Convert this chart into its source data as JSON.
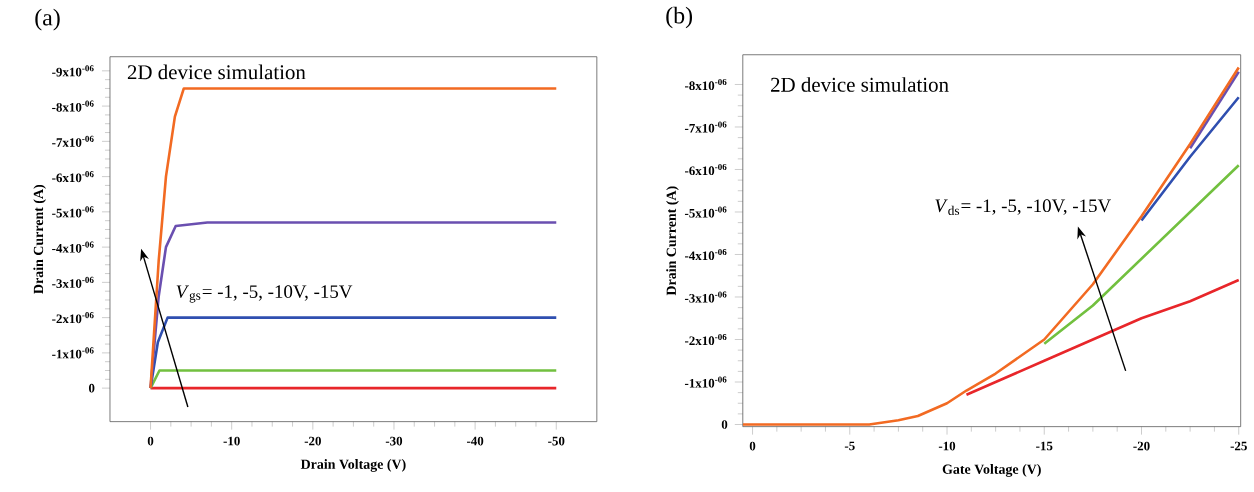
{
  "chart_data": [
    {
      "type": "line",
      "title": "(a)",
      "xlabel": "Drain Voltage (V)",
      "ylabel": "Drain Current (A)",
      "xlim": [
        5,
        -55
      ],
      "xticks": [
        0,
        -10,
        -20,
        -30,
        -40,
        -50
      ],
      "ylim": [
        9.5e-07,
        -9.4e-06
      ],
      "yticks": [
        0,
        {
          "value": -1e-06,
          "label": "-1x10$^{-06}$"
        },
        {
          "value": -2e-06,
          "label": "-2x10$^{-06}$"
        },
        {
          "value": -3e-06,
          "label": "-3x10$^{-06}$"
        },
        {
          "value": -4e-06,
          "label": "-4x10$^{-06}$"
        },
        {
          "value": -5e-06,
          "label": "-5x10$^{-06}$"
        },
        {
          "value": -6e-06,
          "label": "-6x10$^{-06}$"
        },
        {
          "value": -7e-06,
          "label": "-7x10$^{-06}$"
        },
        {
          "value": -8e-06,
          "label": "-8x10$^{-06}$"
        },
        {
          "value": -9e-06,
          "label": "-9x10$^{-06}$"
        }
      ],
      "annotations": [
        "2D device simulation",
        "*V*$_{gs}$= -1, -5, -10V, -15V"
      ],
      "series": [
        {
          "color": "#e8262a",
          "x": [
            0,
            -50
          ],
          "values": [
            0,
            0
          ]
        },
        {
          "color": "#72c03f",
          "x": [
            0,
            -1.1,
            -50
          ],
          "values": [
            0,
            -5e-07,
            -5e-07
          ]
        },
        {
          "color": "#2f4fb0",
          "x": [
            0,
            -0.9,
            -2.1,
            -50
          ],
          "values": [
            0,
            -1.3e-06,
            -2e-06,
            -2e-06
          ]
        },
        {
          "color": "#6a4fb0",
          "x": [
            0,
            -1.0,
            -1.9,
            -3.1,
            -7,
            -50
          ],
          "values": [
            0,
            -2.6e-06,
            -4e-06,
            -4.6e-06,
            -4.7e-06,
            -4.7e-06
          ]
        },
        {
          "color": "#f26a22",
          "x": [
            0,
            -1.0,
            -1.9,
            -3.0,
            -4.1,
            -5.5,
            -50
          ],
          "values": [
            0,
            -3.6e-06,
            -6e-06,
            -7.7e-06,
            -8.5e-06,
            -8.5e-06,
            -8.5e-06
          ]
        }
      ]
    },
    {
      "type": "line",
      "title": "(b)",
      "xlabel": "Gate Voltage (V)",
      "ylabel": "Drain Current (A)",
      "xlim": [
        0.5,
        -25.1
      ],
      "xticks": [
        0,
        -5,
        -10,
        -15,
        -20,
        -25
      ],
      "ylim": [
        5e-08,
        -8.7e-06
      ],
      "yticks": [
        0,
        {
          "value": -1e-06,
          "label": "-1x10$^{-06}$"
        },
        {
          "value": -2e-06,
          "label": "-2x10$^{-06}$"
        },
        {
          "value": -3e-06,
          "label": "-3x10$^{-06}$"
        },
        {
          "value": -4e-06,
          "label": "-4x10$^{-06}$"
        },
        {
          "value": -5e-06,
          "label": "-5x10$^{-06}$"
        },
        {
          "value": -6e-06,
          "label": "-6x10$^{-06}$"
        },
        {
          "value": -7e-06,
          "label": "-7x10$^{-06}$"
        },
        {
          "value": -8e-06,
          "label": "-8x10$^{-06}$"
        }
      ],
      "annotations": [
        "2D device simulation",
        "*V*$_{ds}$= -1, -5, -10V, -15V"
      ],
      "series": [
        {
          "color": "#e8262a",
          "x": [
            -11,
            -12.5,
            -15,
            -17.5,
            -20,
            -22.5,
            -25
          ],
          "values": [
            -7e-07,
            -1e-06,
            -1.5e-06,
            -2e-06,
            -2.5e-06,
            -2.9e-06,
            -3.4e-06
          ]
        },
        {
          "color": "#72c03f",
          "x": [
            -15,
            -17.5,
            -20,
            -22.5,
            -25
          ],
          "values": [
            -1.9e-06,
            -2.8e-06,
            -3.9e-06,
            -5e-06,
            -6.1e-06
          ]
        },
        {
          "color": "#2f4fb0",
          "x": [
            -20,
            -22.5,
            -25
          ],
          "values": [
            -4.8e-06,
            -6.3e-06,
            -7.7e-06
          ]
        },
        {
          "color": "#6a4fb0",
          "x": [
            -22.5,
            -25
          ],
          "values": [
            -6.5e-06,
            -8.3e-06
          ]
        },
        {
          "color": "#f26a22",
          "x": [
            0.5,
            -5,
            -6,
            -7.5,
            -8.5,
            -10,
            -11,
            -12.5,
            -15,
            -17.5,
            -20,
            -22.5,
            -25
          ],
          "values": [
            0,
            0,
            0,
            -1e-07,
            -2e-07,
            -5e-07,
            -8e-07,
            -1.2e-06,
            -2e-06,
            -3.3e-06,
            -4.9e-06,
            -6.6e-06,
            -8.4e-06
          ]
        }
      ]
    }
  ]
}
